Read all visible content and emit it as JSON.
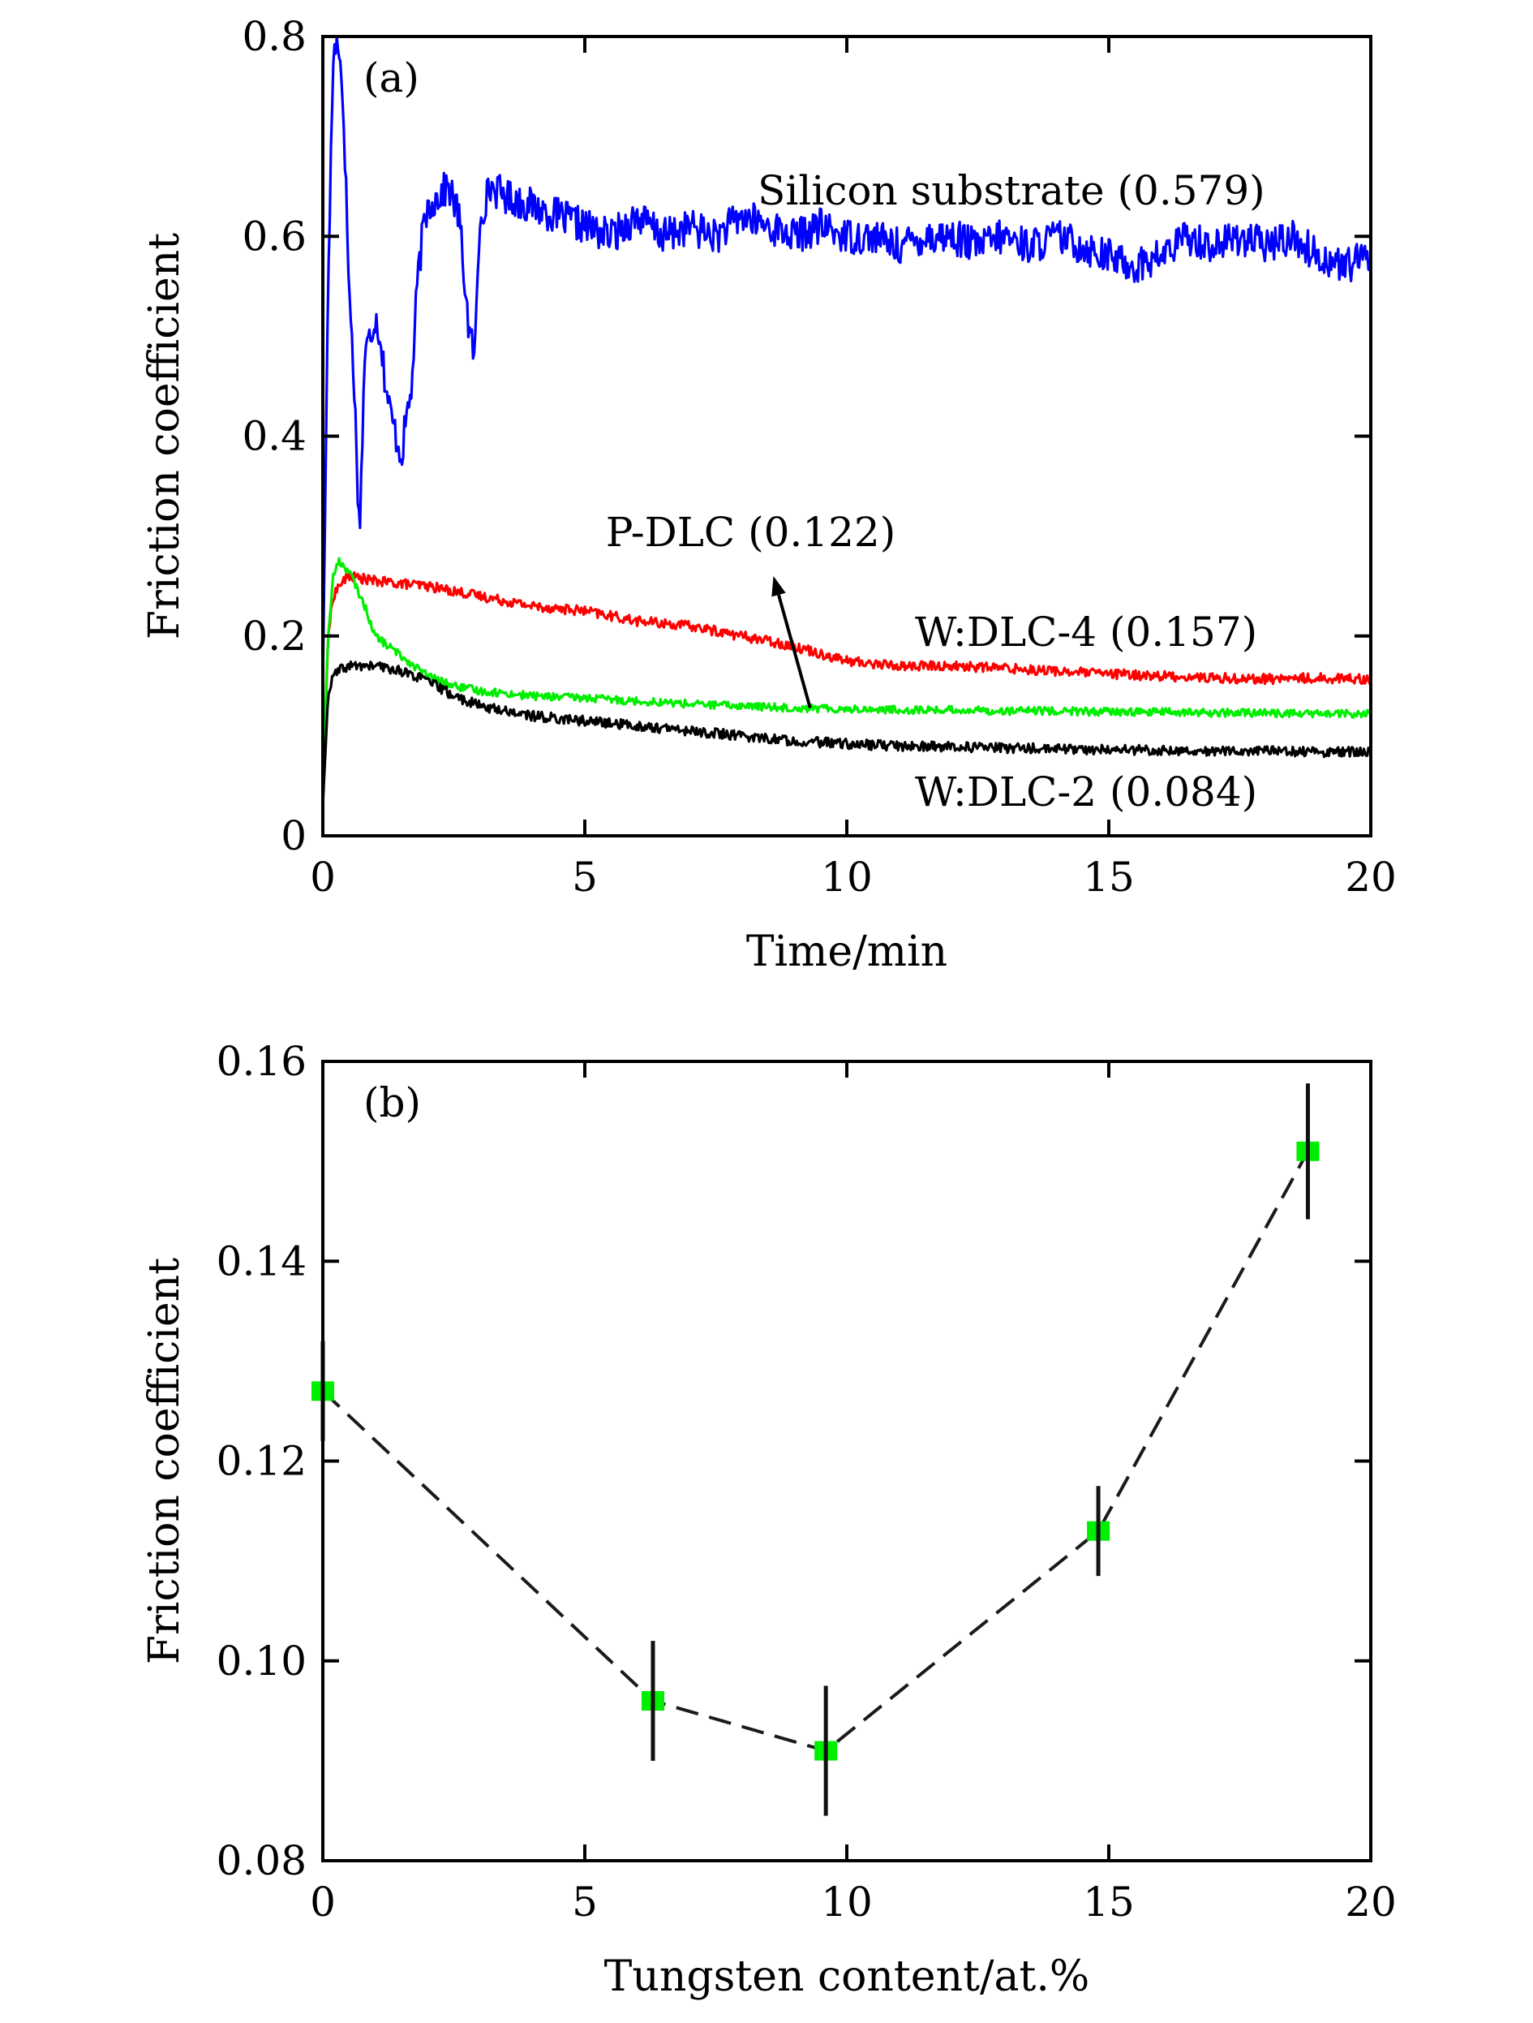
{
  "chart_data": [
    {
      "type": "line",
      "panel_label": "(a)",
      "xlabel": "Time/min",
      "ylabel": "Friction coefficient",
      "xlim": [
        0,
        20
      ],
      "ylim": [
        0,
        0.8
      ],
      "xticks": [
        0,
        5,
        10,
        15,
        20
      ],
      "yticks": [
        0,
        0.2,
        0.4,
        0.6,
        0.8
      ],
      "xtick_labels": [
        "0",
        "5",
        "10",
        "15",
        "20"
      ],
      "ytick_labels": [
        "0",
        "0.2",
        "0.4",
        "0.6",
        "0.8"
      ],
      "series": [
        {
          "name": "Silicon substrate",
          "color": "#0000ff",
          "x": [
            0,
            0.1,
            0.2,
            0.3,
            0.4,
            0.5,
            0.6,
            0.7,
            0.8,
            0.9,
            1.0,
            1.1,
            1.2,
            1.3,
            1.4,
            1.5,
            1.6,
            1.7,
            1.8,
            1.9,
            2.0,
            2.2,
            2.4,
            2.6,
            2.8,
            2.9,
            3.0,
            3.2,
            3.5,
            4,
            4.5,
            5,
            5.5,
            6,
            6.5,
            7,
            7.5,
            8,
            8.5,
            9,
            9.5,
            10,
            10.5,
            11,
            11.5,
            12,
            12.5,
            13,
            13.5,
            14,
            14.5,
            15,
            15.5,
            16,
            16.5,
            17,
            17.5,
            18,
            18.5,
            19,
            19.5,
            20
          ],
          "values": [
            0.15,
            0.55,
            0.78,
            0.8,
            0.72,
            0.55,
            0.45,
            0.3,
            0.48,
            0.5,
            0.52,
            0.5,
            0.45,
            0.42,
            0.4,
            0.38,
            0.42,
            0.45,
            0.55,
            0.6,
            0.63,
            0.64,
            0.65,
            0.62,
            0.5,
            0.48,
            0.62,
            0.65,
            0.64,
            0.63,
            0.62,
            0.61,
            0.6,
            0.62,
            0.6,
            0.61,
            0.6,
            0.62,
            0.61,
            0.6,
            0.61,
            0.6,
            0.6,
            0.59,
            0.6,
            0.6,
            0.59,
            0.6,
            0.59,
            0.6,
            0.59,
            0.58,
            0.57,
            0.58,
            0.6,
            0.59,
            0.6,
            0.59,
            0.6,
            0.58,
            0.57,
            0.58
          ]
        },
        {
          "name": "W:DLC-4",
          "color": "#ff0000",
          "x": [
            0,
            0.1,
            0.2,
            0.3,
            0.5,
            1,
            2,
            3,
            4,
            5,
            6,
            7,
            8,
            9,
            10,
            11,
            12,
            13,
            14,
            15,
            16,
            17,
            18,
            19,
            20
          ],
          "values": [
            0.03,
            0.2,
            0.24,
            0.25,
            0.26,
            0.255,
            0.25,
            0.24,
            0.23,
            0.225,
            0.215,
            0.21,
            0.2,
            0.19,
            0.175,
            0.17,
            0.17,
            0.168,
            0.165,
            0.162,
            0.16,
            0.158,
            0.157,
            0.158,
            0.157
          ]
        },
        {
          "name": "P-DLC",
          "color": "#00ee00",
          "x": [
            0,
            0.1,
            0.2,
            0.3,
            0.5,
            0.8,
            1,
            1.5,
            2,
            2.5,
            3,
            4,
            5,
            6,
            7,
            8,
            9,
            10,
            11,
            12,
            13,
            14,
            15,
            16,
            17,
            18,
            19,
            20
          ],
          "values": [
            0.05,
            0.2,
            0.26,
            0.275,
            0.265,
            0.23,
            0.2,
            0.18,
            0.16,
            0.15,
            0.145,
            0.14,
            0.138,
            0.135,
            0.132,
            0.13,
            0.128,
            0.127,
            0.126,
            0.126,
            0.125,
            0.125,
            0.124,
            0.124,
            0.123,
            0.123,
            0.122,
            0.122
          ]
        },
        {
          "name": "W:DLC-2",
          "color": "#000000",
          "x": [
            0,
            0.1,
            0.2,
            0.3,
            0.5,
            1,
            1.5,
            2,
            2.5,
            3,
            4,
            5,
            6,
            7,
            8,
            9,
            10,
            11,
            12,
            13,
            14,
            15,
            16,
            17,
            18,
            19,
            20
          ],
          "values": [
            0.03,
            0.14,
            0.16,
            0.165,
            0.17,
            0.17,
            0.165,
            0.155,
            0.14,
            0.13,
            0.12,
            0.115,
            0.11,
            0.105,
            0.1,
            0.095,
            0.092,
            0.09,
            0.089,
            0.088,
            0.087,
            0.086,
            0.086,
            0.085,
            0.085,
            0.084,
            0.084
          ]
        }
      ],
      "annotations": [
        {
          "text": "Silicon substrate (0.579)",
          "x": 8.3,
          "y": 0.632
        },
        {
          "text": "P-DLC (0.122)",
          "x": 5.4,
          "y": 0.29
        },
        {
          "text": "W:DLC-4 (0.157)",
          "x": 11.3,
          "y": 0.19
        },
        {
          "text": "W:DLC-2 (0.084)",
          "x": 11.3,
          "y": 0.03
        }
      ],
      "arrow": {
        "from": [
          9.3,
          0.128
        ],
        "to": [
          8.6,
          0.26
        ]
      }
    },
    {
      "type": "scatter",
      "panel_label": "(b)",
      "xlabel": "Tungsten content/at.%",
      "ylabel": "Friction coefficient",
      "xlim": [
        0,
        20
      ],
      "ylim": [
        0.08,
        0.16
      ],
      "xticks": [
        0,
        5,
        10,
        15,
        20
      ],
      "yticks": [
        0.08,
        0.1,
        0.12,
        0.14,
        0.16
      ],
      "xtick_labels": [
        "0",
        "5",
        "10",
        "15",
        "20"
      ],
      "ytick_labels": [
        "0.08",
        "0.10",
        "0.12",
        "0.14",
        "0.16"
      ],
      "marker_color": "#00ee00",
      "line_style": "dashed",
      "x": [
        0,
        6.3,
        9.6,
        14.8,
        18.8
      ],
      "values": [
        0.127,
        0.096,
        0.091,
        0.113,
        0.151
      ],
      "errors": [
        0.005,
        0.006,
        0.0065,
        0.0045,
        0.0068
      ]
    }
  ]
}
